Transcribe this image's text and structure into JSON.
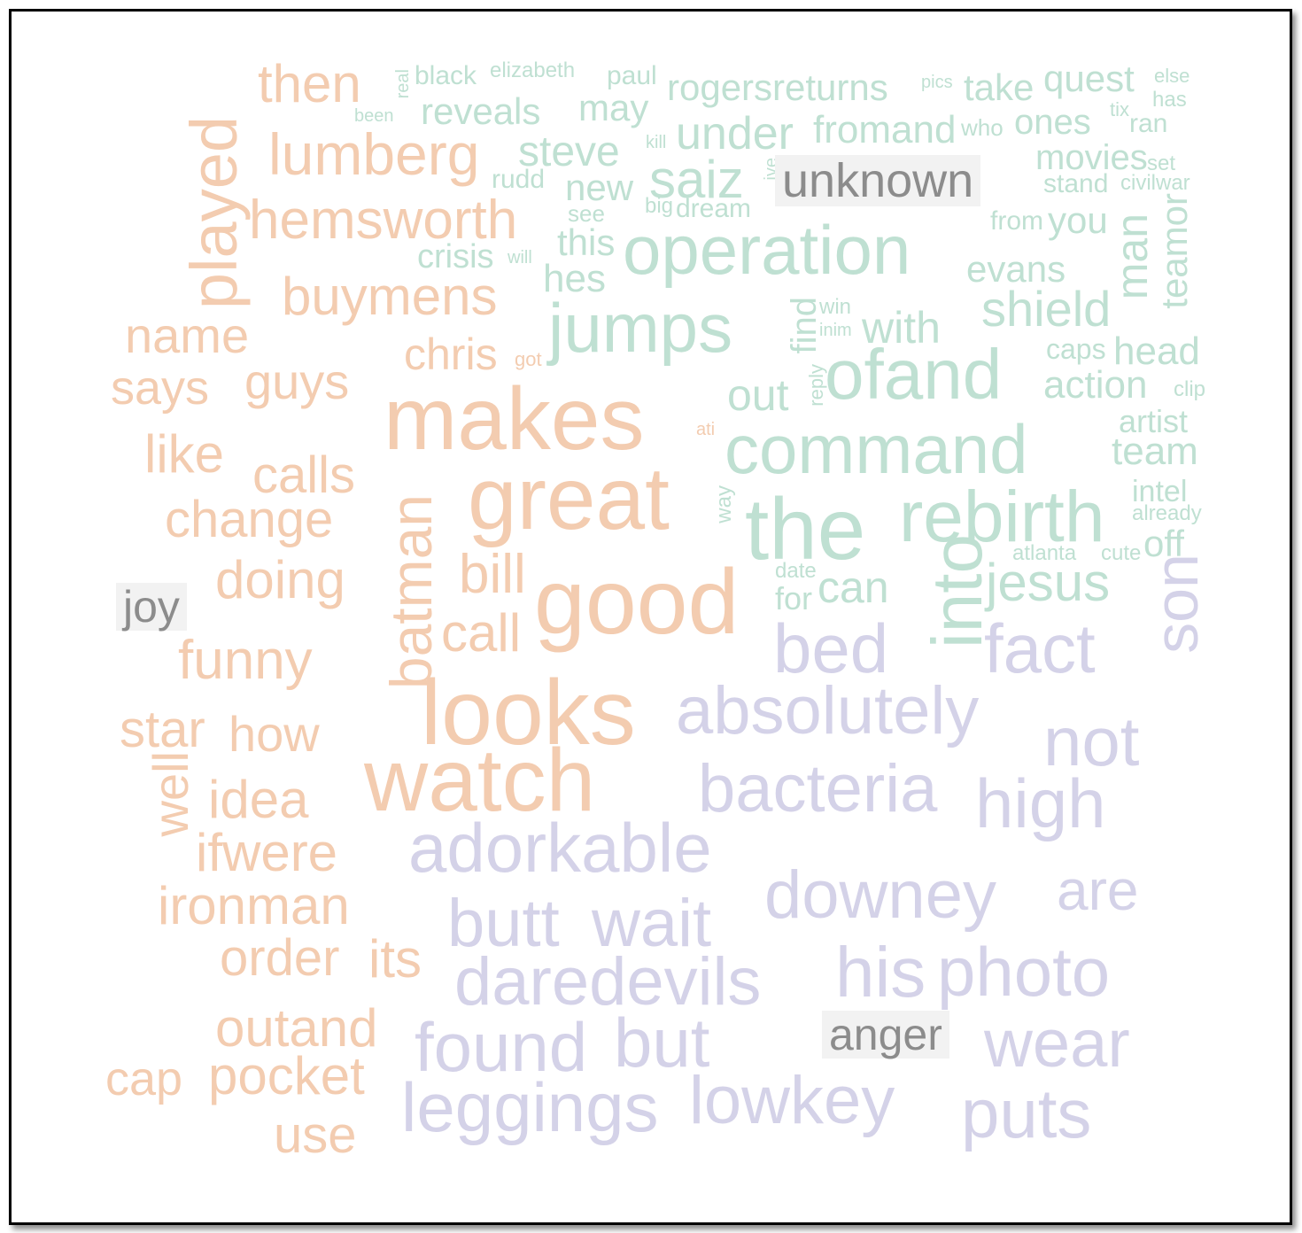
{
  "colors": {
    "joy": "#f3ccb0",
    "unknown": "#bfe0d2",
    "anger": "#d4d2e8",
    "label_text": "#8c8c8c",
    "label_bg": "#f2f2f2"
  },
  "labels": {
    "joy": "joy",
    "unknown": "unknown",
    "anger": "anger"
  },
  "words": [
    {
      "t": "then",
      "c": "joy"
    },
    {
      "t": "lumberg",
      "c": "joy"
    },
    {
      "t": "played",
      "c": "joy"
    },
    {
      "t": "hemsworth",
      "c": "joy"
    },
    {
      "t": "buymens",
      "c": "joy"
    },
    {
      "t": "name",
      "c": "joy"
    },
    {
      "t": "says",
      "c": "joy"
    },
    {
      "t": "guys",
      "c": "joy"
    },
    {
      "t": "chris",
      "c": "joy"
    },
    {
      "t": "got",
      "c": "joy"
    },
    {
      "t": "makes",
      "c": "joy"
    },
    {
      "t": "like",
      "c": "joy"
    },
    {
      "t": "calls",
      "c": "joy"
    },
    {
      "t": "great",
      "c": "joy"
    },
    {
      "t": "change",
      "c": "joy"
    },
    {
      "t": "batman",
      "c": "joy"
    },
    {
      "t": "doing",
      "c": "joy"
    },
    {
      "t": "bill",
      "c": "joy"
    },
    {
      "t": "good",
      "c": "joy"
    },
    {
      "t": "call",
      "c": "joy"
    },
    {
      "t": "funny",
      "c": "joy"
    },
    {
      "t": "looks",
      "c": "joy"
    },
    {
      "t": "star",
      "c": "joy"
    },
    {
      "t": "how",
      "c": "joy"
    },
    {
      "t": "well",
      "c": "joy"
    },
    {
      "t": "watch",
      "c": "joy"
    },
    {
      "t": "idea",
      "c": "joy"
    },
    {
      "t": "ifwere",
      "c": "joy"
    },
    {
      "t": "ironman",
      "c": "joy"
    },
    {
      "t": "order",
      "c": "joy"
    },
    {
      "t": "its",
      "c": "joy"
    },
    {
      "t": "outand",
      "c": "joy"
    },
    {
      "t": "cap",
      "c": "joy"
    },
    {
      "t": "pocket",
      "c": "joy"
    },
    {
      "t": "use",
      "c": "joy"
    },
    {
      "t": "ati",
      "c": "joy"
    },
    {
      "t": "real",
      "c": "unknown"
    },
    {
      "t": "been",
      "c": "unknown"
    },
    {
      "t": "black",
      "c": "unknown"
    },
    {
      "t": "elizabeth",
      "c": "unknown"
    },
    {
      "t": "reveals",
      "c": "unknown"
    },
    {
      "t": "paul",
      "c": "unknown"
    },
    {
      "t": "may",
      "c": "unknown"
    },
    {
      "t": "rogersreturns",
      "c": "unknown"
    },
    {
      "t": "pics",
      "c": "unknown"
    },
    {
      "t": "take",
      "c": "unknown"
    },
    {
      "t": "quest",
      "c": "unknown"
    },
    {
      "t": "else",
      "c": "unknown"
    },
    {
      "t": "has",
      "c": "unknown"
    },
    {
      "t": "tix",
      "c": "unknown"
    },
    {
      "t": "ran",
      "c": "unknown"
    },
    {
      "t": "under",
      "c": "unknown"
    },
    {
      "t": "fromand",
      "c": "unknown"
    },
    {
      "t": "who",
      "c": "unknown"
    },
    {
      "t": "ones",
      "c": "unknown"
    },
    {
      "t": "steve",
      "c": "unknown"
    },
    {
      "t": "kill",
      "c": "unknown"
    },
    {
      "t": "rudd",
      "c": "unknown"
    },
    {
      "t": "new",
      "c": "unknown"
    },
    {
      "t": "saiz",
      "c": "unknown"
    },
    {
      "t": "ive",
      "c": "unknown"
    },
    {
      "t": "movies",
      "c": "unknown"
    },
    {
      "t": "set",
      "c": "unknown"
    },
    {
      "t": "stand",
      "c": "unknown"
    },
    {
      "t": "civilwar",
      "c": "unknown"
    },
    {
      "t": "see",
      "c": "unknown"
    },
    {
      "t": "big",
      "c": "unknown"
    },
    {
      "t": "dream",
      "c": "unknown"
    },
    {
      "t": "this",
      "c": "unknown"
    },
    {
      "t": "crisis",
      "c": "unknown"
    },
    {
      "t": "will",
      "c": "unknown"
    },
    {
      "t": "hes",
      "c": "unknown"
    },
    {
      "t": "operation",
      "c": "unknown"
    },
    {
      "t": "from",
      "c": "unknown"
    },
    {
      "t": "you",
      "c": "unknown"
    },
    {
      "t": "man",
      "c": "unknown"
    },
    {
      "t": "teamor",
      "c": "unknown"
    },
    {
      "t": "evans",
      "c": "unknown"
    },
    {
      "t": "jumps",
      "c": "unknown"
    },
    {
      "t": "find",
      "c": "unknown"
    },
    {
      "t": "win",
      "c": "unknown"
    },
    {
      "t": "inim",
      "c": "unknown"
    },
    {
      "t": "with",
      "c": "unknown"
    },
    {
      "t": "shield",
      "c": "unknown"
    },
    {
      "t": "caps",
      "c": "unknown"
    },
    {
      "t": "head",
      "c": "unknown"
    },
    {
      "t": "reply",
      "c": "unknown"
    },
    {
      "t": "ofand",
      "c": "unknown"
    },
    {
      "t": "action",
      "c": "unknown"
    },
    {
      "t": "clip",
      "c": "unknown"
    },
    {
      "t": "out",
      "c": "unknown"
    },
    {
      "t": "artist",
      "c": "unknown"
    },
    {
      "t": "command",
      "c": "unknown"
    },
    {
      "t": "team",
      "c": "unknown"
    },
    {
      "t": "way",
      "c": "unknown"
    },
    {
      "t": "the",
      "c": "unknown"
    },
    {
      "t": "rebirth",
      "c": "unknown"
    },
    {
      "t": "intel",
      "c": "unknown"
    },
    {
      "t": "already",
      "c": "unknown"
    },
    {
      "t": "off",
      "c": "unknown"
    },
    {
      "t": "into",
      "c": "unknown"
    },
    {
      "t": "atlanta",
      "c": "unknown"
    },
    {
      "t": "cute",
      "c": "unknown"
    },
    {
      "t": "date",
      "c": "unknown"
    },
    {
      "t": "for",
      "c": "unknown"
    },
    {
      "t": "can",
      "c": "unknown"
    },
    {
      "t": "jesus",
      "c": "unknown"
    },
    {
      "t": "son",
      "c": "anger"
    },
    {
      "t": "bed",
      "c": "anger"
    },
    {
      "t": "fact",
      "c": "anger"
    },
    {
      "t": "absolutely",
      "c": "anger"
    },
    {
      "t": "not",
      "c": "anger"
    },
    {
      "t": "bacteria",
      "c": "anger"
    },
    {
      "t": "high",
      "c": "anger"
    },
    {
      "t": "adorkable",
      "c": "anger"
    },
    {
      "t": "downey",
      "c": "anger"
    },
    {
      "t": "are",
      "c": "anger"
    },
    {
      "t": "butt",
      "c": "anger"
    },
    {
      "t": "wait",
      "c": "anger"
    },
    {
      "t": "daredevils",
      "c": "anger"
    },
    {
      "t": "his",
      "c": "anger"
    },
    {
      "t": "photo",
      "c": "anger"
    },
    {
      "t": "found",
      "c": "anger"
    },
    {
      "t": "but",
      "c": "anger"
    },
    {
      "t": "wear",
      "c": "anger"
    },
    {
      "t": "leggings",
      "c": "anger"
    },
    {
      "t": "lowkey",
      "c": "anger"
    },
    {
      "t": "puts",
      "c": "anger"
    }
  ]
}
